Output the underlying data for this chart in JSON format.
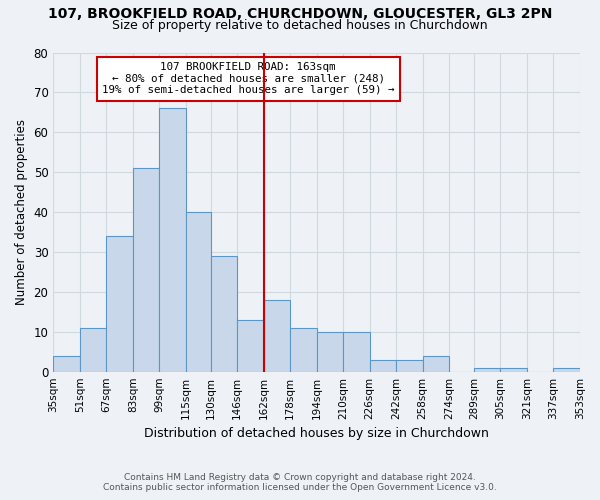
{
  "title_line1": "107, BROOKFIELD ROAD, CHURCHDOWN, GLOUCESTER, GL3 2PN",
  "title_line2": "Size of property relative to detached houses in Churchdown",
  "xlabel": "Distribution of detached houses by size in Churchdown",
  "ylabel": "Number of detached properties",
  "bar_values": [
    4,
    11,
    34,
    51,
    66,
    40,
    29,
    13,
    18,
    11,
    10,
    10,
    3,
    3,
    4,
    0,
    1,
    1,
    0,
    1
  ],
  "bin_edges": [
    35,
    51,
    67,
    83,
    99,
    115,
    130,
    146,
    162,
    178,
    194,
    210,
    226,
    242,
    258,
    274,
    289,
    305,
    321,
    337,
    353
  ],
  "tick_labels": [
    "35sqm",
    "51sqm",
    "67sqm",
    "83sqm",
    "99sqm",
    "115sqm",
    "130sqm",
    "146sqm",
    "162sqm",
    "178sqm",
    "194sqm",
    "210sqm",
    "226sqm",
    "242sqm",
    "258sqm",
    "274sqm",
    "289sqm",
    "305sqm",
    "321sqm",
    "337sqm",
    "353sqm"
  ],
  "bar_color": "#c8d8ea",
  "bar_edge_color": "#5b96c8",
  "vline_x": 162,
  "vline_color": "#cc0000",
  "annotation_line1": "107 BROOKFIELD ROAD: 163sqm",
  "annotation_line2": "← 80% of detached houses are smaller (248)",
  "annotation_line3": "19% of semi-detached houses are larger (59) →",
  "annotation_box_color": "#ffffff",
  "annotation_box_edge": "#cc0000",
  "ylim": [
    0,
    80
  ],
  "yticks": [
    0,
    10,
    20,
    30,
    40,
    50,
    60,
    70,
    80
  ],
  "grid_color": "#d0d8e0",
  "bg_color": "#eef2f7",
  "title_color": "#000000",
  "footer1": "Contains HM Land Registry data © Crown copyright and database right 2024.",
  "footer2": "Contains public sector information licensed under the Open Government Licence v3.0.",
  "footer_color": "#555555"
}
